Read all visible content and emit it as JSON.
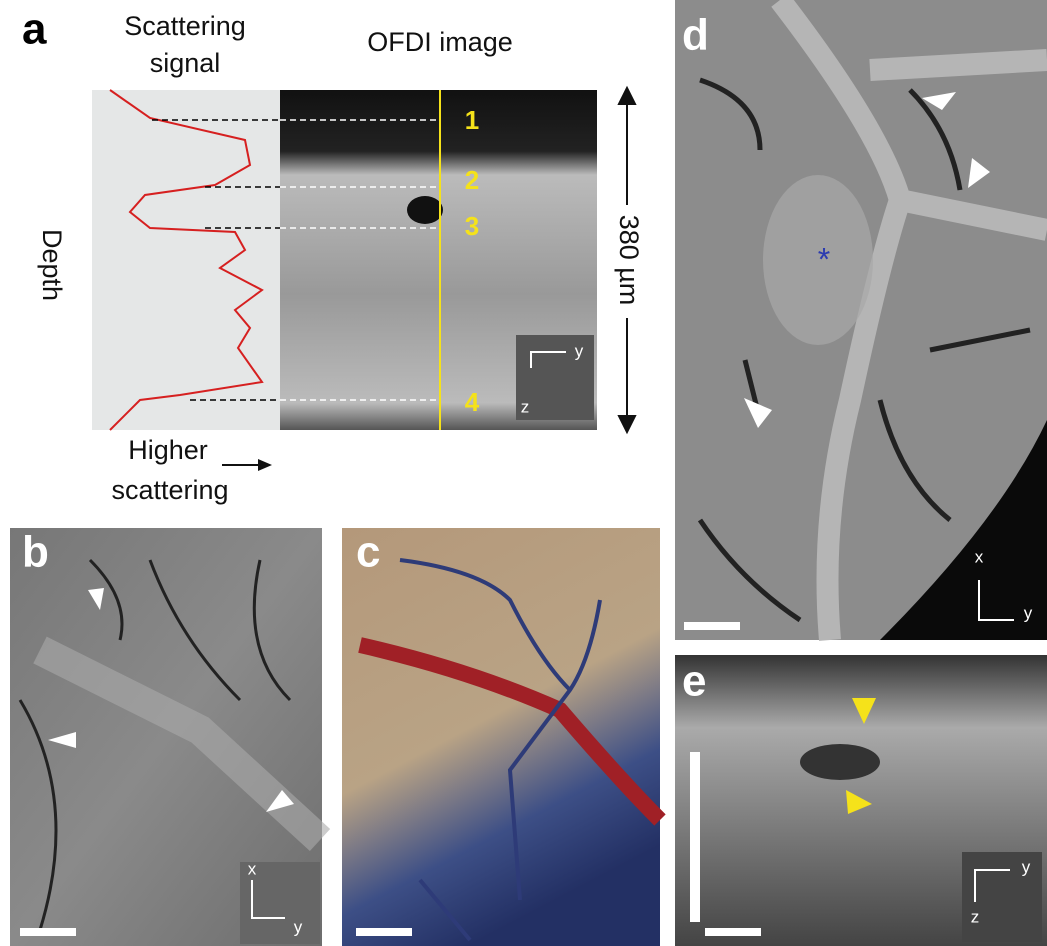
{
  "panel_a": {
    "label": "a",
    "signal_title": [
      "Scattering",
      "signal"
    ],
    "image_title": "OFDI image",
    "depth_label": "Depth",
    "scatter_label": [
      "Higher",
      "scattering"
    ],
    "markers": [
      "1",
      "2",
      "3",
      "4"
    ],
    "scale": "380 µm",
    "axes": [
      "y",
      "z"
    ]
  },
  "panel_b": {
    "label": "b",
    "axes": [
      "x",
      "y"
    ]
  },
  "panel_c": {
    "label": "c"
  },
  "panel_d": {
    "label": "d",
    "marker": "*",
    "axes": [
      "x",
      "y"
    ]
  },
  "panel_e": {
    "label": "e",
    "axes": [
      "y",
      "z"
    ]
  }
}
